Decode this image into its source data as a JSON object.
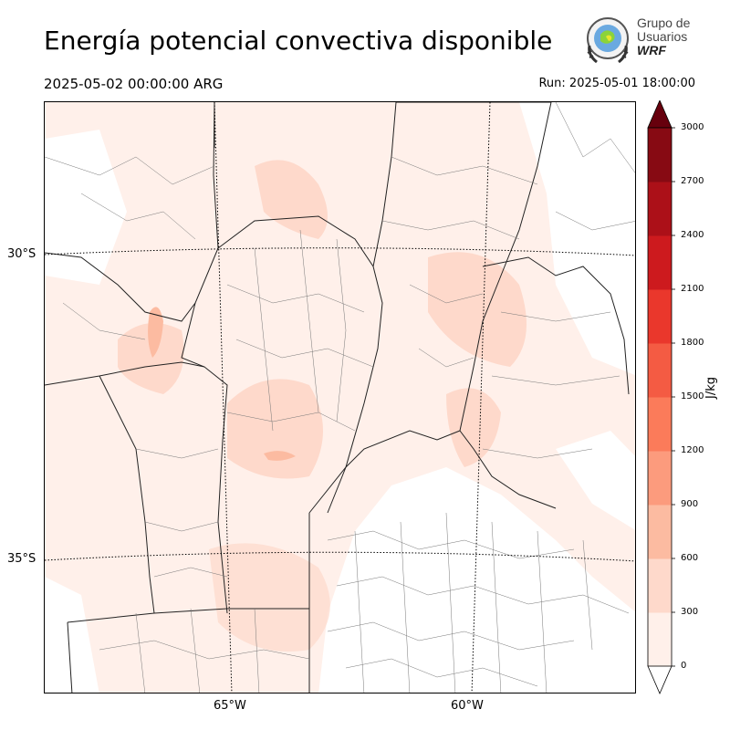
{
  "header": {
    "title": "Energía potencial convectiva disponible",
    "valid_time": "2025-05-02 00:00:00 ARG",
    "run": "Run: 2025-05-01 18:00:00"
  },
  "logo": {
    "line1": "Grupo de",
    "line2": "Usuarios",
    "line3": "WRF"
  },
  "axes": {
    "lat_labels": [
      "30°S",
      "35°S"
    ],
    "lon_labels": [
      "65°W",
      "60°W"
    ]
  },
  "colorbar": {
    "label": "J/kg",
    "ticks": [
      "0",
      "300",
      "600",
      "900",
      "1200",
      "1500",
      "1800",
      "2100",
      "2400",
      "2700",
      "3000"
    ],
    "colors": [
      "#fff0ea",
      "#fed9cb",
      "#fcbba1",
      "#fc9b7d",
      "#fb7b5a",
      "#f45b43",
      "#ea372c",
      "#cd1a1e",
      "#ac1018",
      "#870a13"
    ],
    "extend": "both",
    "under_color": "#ffffff",
    "over_color": "#67000d"
  },
  "map": {
    "field": "CAPE",
    "dominant_level": "0-300 J/kg",
    "max_level": "600-900 J/kg"
  }
}
